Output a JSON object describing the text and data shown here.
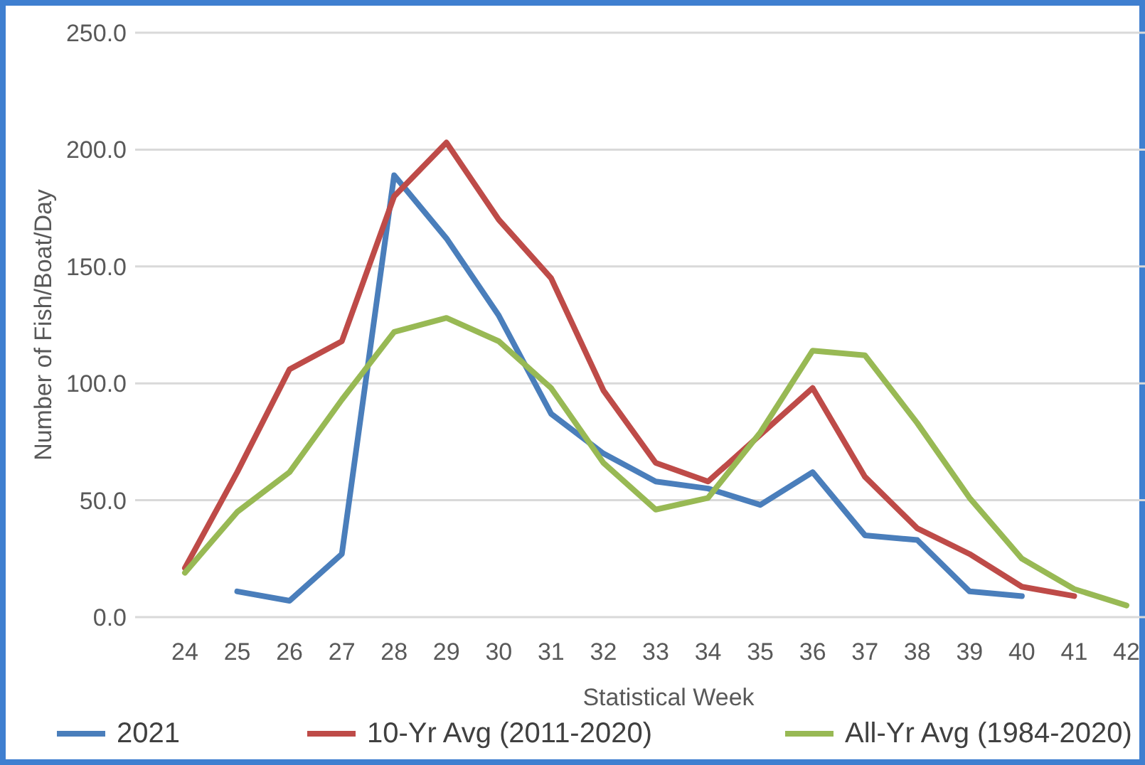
{
  "chart_data": {
    "type": "line",
    "xlabel": "Statistical Week",
    "ylabel": "Number of Fish/Boat/Day",
    "categories": [
      "24",
      "25",
      "26",
      "27",
      "28",
      "29",
      "30",
      "31",
      "32",
      "33",
      "34",
      "35",
      "36",
      "37",
      "38",
      "39",
      "40",
      "41",
      "42"
    ],
    "series": [
      {
        "name": "2021",
        "color": "#4a7ebb",
        "values": [
          null,
          11,
          7,
          27,
          189,
          162,
          129,
          87,
          70,
          58,
          55,
          48,
          62,
          35,
          33,
          11,
          9,
          null,
          null
        ]
      },
      {
        "name": "10-Yr Avg (2011-2020)",
        "color": "#be4b48",
        "values": [
          21,
          62,
          106,
          118,
          180,
          203,
          170,
          145,
          97,
          66,
          58,
          78,
          98,
          60,
          38,
          27,
          13,
          9,
          null
        ]
      },
      {
        "name": "All-Yr Avg (1984-2020)",
        "color": "#98b954",
        "values": [
          19,
          45,
          62,
          93,
          122,
          128,
          118,
          98,
          66,
          46,
          51,
          79,
          114,
          112,
          83,
          51,
          25,
          12,
          5
        ]
      }
    ],
    "ylim": [
      0,
      250
    ],
    "yticks": [
      {
        "value": 0,
        "label": "0.0"
      },
      {
        "value": 50,
        "label": "50.0"
      },
      {
        "value": 100,
        "label": "100.0"
      },
      {
        "value": 150,
        "label": "150.0"
      },
      {
        "value": 200,
        "label": "200.0"
      },
      {
        "value": 250,
        "label": "250.0"
      }
    ],
    "grid": "y",
    "legend": "bottom",
    "marker": "none",
    "line_style": "solid"
  }
}
